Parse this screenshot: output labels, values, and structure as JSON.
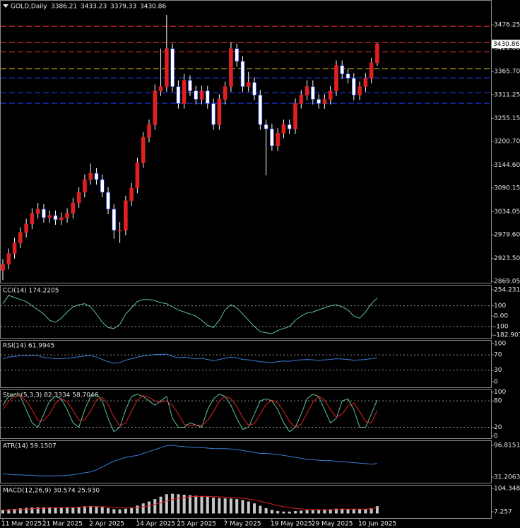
{
  "chart_data": [
    {
      "type": "candlestick",
      "title": "GOLD,Daily",
      "categories": [
        "11 Mar 2025",
        null,
        null,
        null,
        null,
        null,
        null,
        "21 Mar 2025",
        null,
        null,
        null,
        null,
        null,
        null,
        null,
        "2 Apr 2025",
        null,
        null,
        null,
        null,
        null,
        null,
        null,
        "14 Apr 2025",
        null,
        null,
        null,
        null,
        null,
        null,
        "25 Apr 2025",
        null,
        null,
        null,
        null,
        null,
        null,
        null,
        "7 May 2025",
        null,
        null,
        null,
        null,
        null,
        null,
        null,
        "19 May 2025",
        null,
        null,
        null,
        null,
        null,
        null,
        "29 May 2025",
        null,
        null,
        null,
        null,
        null,
        null,
        null,
        "10 Jun 2025",
        null,
        null,
        null
      ],
      "open": [
        2895,
        2910,
        2935,
        2960,
        2985,
        3005,
        3030,
        3040,
        3020,
        3025,
        3015,
        3020,
        3030,
        3055,
        3080,
        3110,
        3125,
        3110,
        3080,
        3040,
        2990,
        2990,
        3060,
        3090,
        3150,
        3210,
        3240,
        3320,
        3330,
        3420,
        3330,
        3290,
        3345,
        3320,
        3300,
        3320,
        3290,
        3240,
        3300,
        3330,
        3420,
        3390,
        3330,
        3340,
        3310,
        3240,
        3230,
        3190,
        3220,
        3240,
        3230,
        3290,
        3310,
        3330,
        3300,
        3290,
        3300,
        3320,
        3380,
        3360,
        3350,
        3310,
        3330,
        3350,
        3386.21
      ],
      "high": [
        2922,
        2947,
        2972,
        2997,
        3017,
        3042,
        3055,
        3052,
        3037,
        3037,
        3032,
        3042,
        3067,
        3092,
        3122,
        3148,
        3137,
        3122,
        3092,
        3052,
        3010,
        3072,
        3102,
        3162,
        3222,
        3252,
        3335,
        3420,
        3500,
        3432,
        3345,
        3360,
        3357,
        3332,
        3332,
        3332,
        3302,
        3312,
        3342,
        3435,
        3432,
        3402,
        3365,
        3352,
        3322,
        3252,
        3242,
        3232,
        3252,
        3252,
        3302,
        3322,
        3345,
        3345,
        3312,
        3312,
        3332,
        3392,
        3392,
        3372,
        3362,
        3342,
        3362,
        3398,
        3433.23
      ],
      "low": [
        2872,
        2898,
        2923,
        2948,
        2973,
        2993,
        3018,
        3008,
        3008,
        3003,
        3003,
        3008,
        3018,
        3043,
        3068,
        3098,
        3098,
        3068,
        3028,
        2970,
        2960,
        2978,
        3048,
        3078,
        3138,
        3198,
        3228,
        3308,
        3318,
        3318,
        3278,
        3278,
        3308,
        3288,
        3288,
        3278,
        3228,
        3228,
        3288,
        3318,
        3378,
        3318,
        3318,
        3298,
        3228,
        3120,
        3178,
        3178,
        3208,
        3218,
        3218,
        3278,
        3298,
        3288,
        3278,
        3278,
        3288,
        3308,
        3348,
        3338,
        3298,
        3298,
        3318,
        3338,
        3379.33
      ],
      "close": [
        2910,
        2935,
        2960,
        2985,
        3005,
        3030,
        3040,
        3020,
        3025,
        3015,
        3020,
        3030,
        3055,
        3080,
        3110,
        3125,
        3110,
        3080,
        3040,
        2990,
        2990,
        3060,
        3090,
        3150,
        3210,
        3240,
        3320,
        3330,
        3420,
        3330,
        3290,
        3345,
        3320,
        3300,
        3320,
        3290,
        3240,
        3300,
        3330,
        3420,
        3390,
        3330,
        3340,
        3310,
        3240,
        3230,
        3190,
        3220,
        3240,
        3230,
        3290,
        3310,
        3330,
        3300,
        3290,
        3300,
        3320,
        3380,
        3360,
        3350,
        3310,
        3330,
        3350,
        3386.21,
        3430.86
      ],
      "up_color": "#e02020",
      "down_color": "#ffffff",
      "wick_color": "#ffffff",
      "ylim": [
        2866,
        3535
      ],
      "yticks": [
        3476.25,
        {
          "value": 3421,
          "label": "3421.00"
        },
        {
          "value": 3365.7,
          "label": "3365.70"
        },
        3311.25,
        3255.15,
        {
          "value": 3200.7,
          "label": "3200.70"
        },
        {
          "value": 3144.6,
          "label": "3144.60"
        },
        3090.15,
        3034.05,
        {
          "value": 2979.6,
          "label": "2979.60"
        },
        {
          "value": 2923.5,
          "label": "2923.50"
        },
        2869.05
      ],
      "levels": [
        {
          "value": 3472.9,
          "color": "#ff3030"
        },
        {
          "value": 3434.5,
          "color": "#ff3030"
        },
        {
          "value": 3412.7,
          "color": "#ff3030"
        },
        {
          "value": 3372.6,
          "color": "#e8d020"
        },
        {
          "value": 3350.9,
          "color": "#2040ff"
        },
        {
          "value": 3315.8,
          "color": "#2040ff"
        },
        {
          "value": 3290.7,
          "color": "#2040ff"
        }
      ]
    },
    {
      "type": "line",
      "title": "CCI(14) 174.2205",
      "ylim": [
        -210,
        302
      ],
      "yticks": [
        254.2318,
        100,
        {
          "value": 0,
          "label": "0.00"
        },
        -100,
        -182.9072
      ],
      "levels": [
        100,
        -100
      ],
      "level_color": "#909090",
      "series": [
        {
          "color": "#60c0a0",
          "values": [
            120,
            200,
            180,
            160,
            140,
            100,
            60,
            20,
            -40,
            -60,
            -20,
            40,
            90,
            110,
            120,
            90,
            20,
            -60,
            -110,
            -120,
            -80,
            20,
            80,
            140,
            160,
            160,
            150,
            130,
            120,
            90,
            60,
            40,
            20,
            0,
            -40,
            -90,
            -110,
            -40,
            60,
            110,
            80,
            20,
            -40,
            -100,
            -150,
            -160,
            -170,
            -140,
            -120,
            -100,
            -40,
            0,
            30,
            40,
            60,
            80,
            100,
            110,
            90,
            60,
            0,
            -20,
            40,
            120,
            174.2205
          ]
        }
      ]
    },
    {
      "type": "line",
      "title": "RSI(14) 61.9945",
      "ylim": [
        -15,
        109
      ],
      "yticks": [
        100,
        70,
        30,
        0
      ],
      "levels": [
        70,
        30
      ],
      "level_color": "#909090",
      "series": [
        {
          "color": "#3a7bd5",
          "values": [
            60,
            64,
            66,
            68,
            68,
            69,
            68,
            63,
            62,
            60,
            60,
            61,
            63,
            65,
            67,
            68,
            64,
            58,
            52,
            48,
            50,
            56,
            60,
            64,
            67,
            69,
            71,
            71,
            72,
            66,
            62,
            64,
            62,
            60,
            61,
            58,
            55,
            58,
            61,
            64,
            62,
            58,
            57,
            55,
            52,
            51,
            50,
            52,
            54,
            53,
            56,
            57,
            58,
            57,
            56,
            57,
            58,
            60,
            59,
            58,
            56,
            57,
            58,
            60,
            61.9945
          ]
        }
      ]
    },
    {
      "type": "line",
      "title": "Stoch(5,3,3) 82.3334 58.7046",
      "ylim": [
        -5,
        106
      ],
      "yticks": [
        100,
        80,
        20,
        0
      ],
      "levels": [
        80,
        20
      ],
      "level_color": "#909090",
      "series": [
        {
          "color": "#60c0a0",
          "values": [
            70,
            90,
            95,
            90,
            60,
            30,
            20,
            50,
            80,
            90,
            85,
            60,
            30,
            20,
            60,
            90,
            95,
            80,
            40,
            10,
            20,
            60,
            90,
            95,
            90,
            80,
            70,
            80,
            90,
            40,
            20,
            20,
            30,
            25,
            20,
            60,
            85,
            95,
            90,
            70,
            40,
            15,
            20,
            50,
            80,
            85,
            80,
            60,
            30,
            10,
            20,
            50,
            85,
            95,
            90,
            60,
            30,
            40,
            80,
            85,
            60,
            20,
            20,
            50,
            82.3334
          ]
        },
        {
          "color": "#e02020",
          "values": [
            60,
            80,
            90,
            92,
            80,
            60,
            35,
            35,
            50,
            75,
            85,
            78,
            58,
            36,
            37,
            57,
            82,
            88,
            72,
            43,
            23,
            30,
            57,
            82,
            92,
            88,
            80,
            77,
            80,
            70,
            50,
            27,
            23,
            25,
            25,
            35,
            55,
            80,
            90,
            85,
            67,
            42,
            25,
            28,
            50,
            72,
            82,
            75,
            57,
            33,
            20,
            27,
            52,
            77,
            90,
            82,
            60,
            43,
            50,
            68,
            75,
            55,
            33,
            30,
            58.7046
          ]
        }
      ]
    },
    {
      "type": "line",
      "title": "ATR(14) 59.1507",
      "ylim": [
        19.5,
        107
      ],
      "yticks": [
        96.8151,
        31.2063
      ],
      "levels": [],
      "level_color": "#909090",
      "series": [
        {
          "color": "#3a7bd5",
          "values": [
            38,
            37,
            36,
            36,
            35,
            35,
            34,
            34,
            34,
            34,
            34,
            35,
            36,
            38,
            40,
            42,
            46,
            52,
            58,
            64,
            68,
            72,
            74,
            76,
            80,
            84,
            88,
            92,
            96,
            97,
            95,
            94,
            93,
            92,
            92,
            91,
            90,
            90,
            90,
            89,
            88,
            86,
            84,
            82,
            80,
            80,
            79,
            78,
            76,
            74,
            72,
            70,
            68,
            67,
            66,
            65,
            65,
            64,
            63,
            62,
            61,
            60,
            59,
            58,
            59.1507
          ]
        }
      ]
    },
    {
      "type": "macd",
      "title": "MACD(12,26,9) 30.574 25.930",
      "ylim": [
        -19.2,
        119
      ],
      "yticks": [
        104.348,
        7.257
      ],
      "levels": [],
      "level_color": "#909090",
      "series": [
        {
          "kind": "bar",
          "color": "#c8c8c8",
          "values": [
            15,
            17,
            19,
            21,
            23,
            25,
            26,
            26,
            26,
            25,
            25,
            25,
            26,
            28,
            30,
            31,
            30,
            27,
            22,
            18,
            17,
            20,
            25,
            33,
            42,
            50,
            60,
            70,
            80,
            82,
            80,
            78,
            76,
            74,
            72,
            70,
            66,
            64,
            63,
            62,
            60,
            56,
            50,
            42,
            32,
            22,
            15,
            10,
            8,
            8,
            10,
            12,
            14,
            14,
            14,
            16,
            18,
            20,
            20,
            19,
            18,
            18,
            19,
            22,
            30.574
          ]
        },
        {
          "kind": "line",
          "color": "#e02020",
          "values": [
            13,
            14,
            15,
            16,
            18,
            19,
            21,
            22,
            23,
            24,
            24,
            25,
            25,
            26,
            27,
            28,
            28,
            28,
            27,
            25,
            24,
            23,
            23,
            25,
            28,
            32,
            38,
            44,
            52,
            58,
            63,
            67,
            69,
            71,
            71,
            71,
            70,
            69,
            68,
            67,
            65,
            63,
            60,
            56,
            51,
            45,
            39,
            33,
            28,
            24,
            21,
            19,
            17,
            16,
            16,
            16,
            16,
            17,
            18,
            18,
            18,
            18,
            18,
            19,
            25.93
          ]
        }
      ]
    }
  ]
}
